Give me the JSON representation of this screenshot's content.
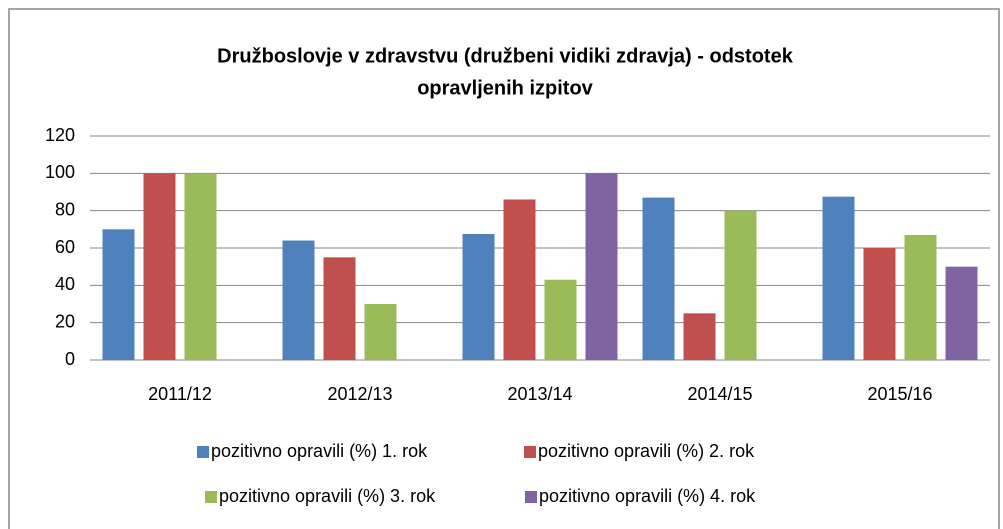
{
  "chart_data": {
    "type": "bar",
    "title": "Družboslovje v zdravstvu (družbeni vidiki zdravja) - odstotek opravljenih izpitov",
    "categories": [
      "2011/12",
      "2012/13",
      "2013/14",
      "2014/15",
      "2015/16"
    ],
    "series": [
      {
        "name": "pozitivno opravili (%) 1. rok",
        "color": "#4f81bd",
        "values": [
          70,
          64,
          67.5,
          87,
          87.5
        ]
      },
      {
        "name": "pozitivno opravili (%) 2. rok",
        "color": "#c0504d",
        "values": [
          100,
          55,
          86,
          25,
          60
        ]
      },
      {
        "name": "pozitivno opravili (%) 3. rok",
        "color": "#9bbb59",
        "values": [
          100,
          30,
          43,
          80,
          67
        ]
      },
      {
        "name": "pozitivno opravili (%) 4. rok",
        "color": "#8064a2",
        "values": [
          null,
          null,
          100,
          null,
          50
        ]
      }
    ],
    "ylim": [
      0,
      120
    ],
    "yticks": [
      0,
      20,
      40,
      60,
      80,
      100,
      120
    ],
    "grid": true,
    "legend": "bottom"
  }
}
